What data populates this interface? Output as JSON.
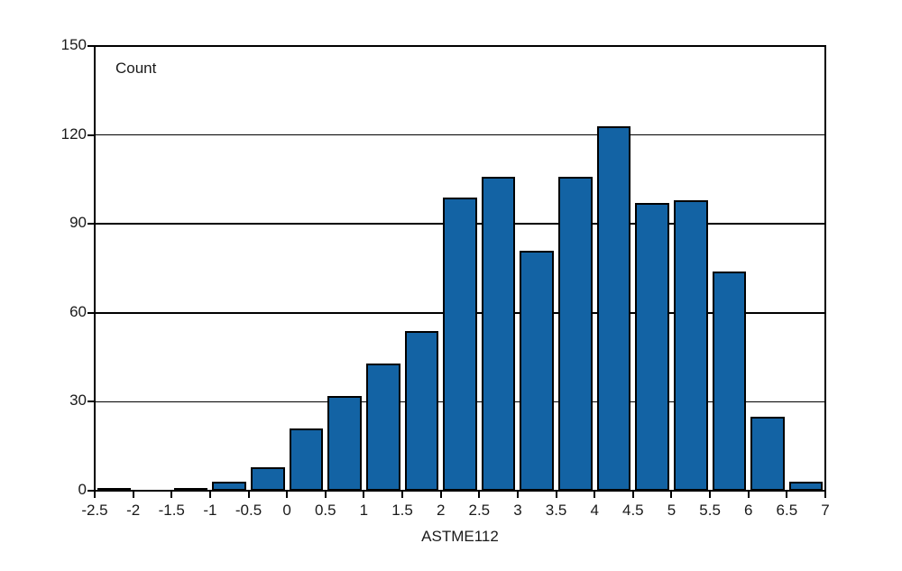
{
  "chart_data": {
    "type": "bar",
    "subtype": "histogram",
    "title": "",
    "xlabel": "ASTME112",
    "ylabel": "Count",
    "bin_edges": [
      -2.5,
      -2,
      -1.5,
      -1,
      -0.5,
      0,
      0.5,
      1,
      1.5,
      2,
      2.5,
      3,
      3.5,
      4,
      4.5,
      5,
      5.5,
      6,
      6.5,
      7
    ],
    "values": [
      1,
      0,
      1,
      3,
      8,
      21,
      32,
      43,
      54,
      99,
      106,
      81,
      106,
      123,
      97,
      98,
      74,
      25,
      3
    ],
    "ylim": [
      0,
      150
    ],
    "yticks": [
      0,
      30,
      60,
      90,
      120,
      150
    ],
    "xtick_labels": [
      "-2.5",
      "-2",
      "-1.5",
      "-1",
      "-0.5",
      "0",
      "0.5",
      "1",
      "1.5",
      "2",
      "2.5",
      "3",
      "3.5",
      "4",
      "4.5",
      "5",
      "5.5",
      "6",
      "6.5",
      "7"
    ],
    "grid": true,
    "legend_position": "none",
    "colors": {
      "bar_fill": "#1363a4",
      "bar_stroke": "#000000",
      "axis": "#000000",
      "text": "#1a1a1a",
      "background": "#ffffff"
    }
  }
}
